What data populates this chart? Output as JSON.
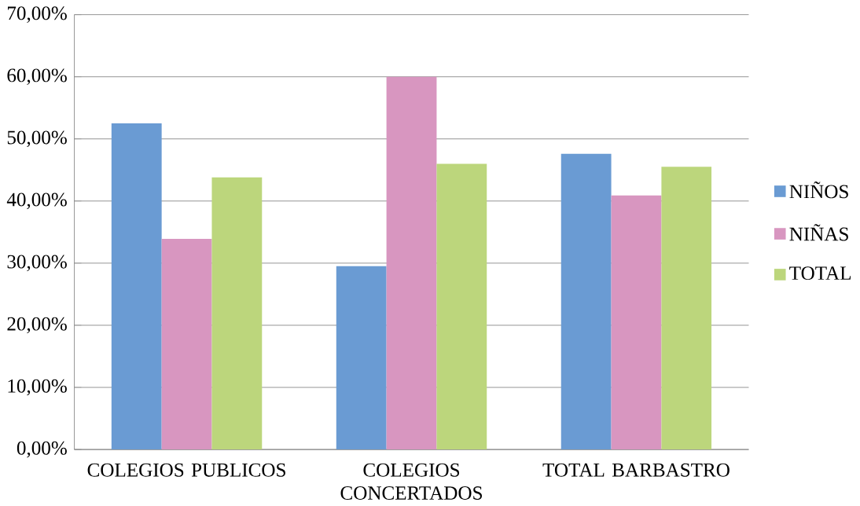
{
  "chart_data": {
    "type": "bar",
    "categories": [
      "COLEGIOS PUBLICOS",
      "COLEGIOS CONCERTADOS",
      "TOTAL BARBASTRO"
    ],
    "series": [
      {
        "name": "NIÑOS",
        "color": "#6a9bd3",
        "values": [
          52.5,
          29.5,
          47.6
        ]
      },
      {
        "name": "NIÑAS",
        "color": "#d896c0",
        "values": [
          33.9,
          60.0,
          40.9
        ]
      },
      {
        "name": "TOTAL",
        "color": "#bcd67c",
        "values": [
          43.8,
          46.0,
          45.5
        ]
      }
    ],
    "ylim": [
      0,
      70
    ],
    "yticks": [
      {
        "value": 0,
        "label": "0,00%"
      },
      {
        "value": 10,
        "label": "10,00%"
      },
      {
        "value": 20,
        "label": "20,00%"
      },
      {
        "value": 30,
        "label": "30,00%"
      },
      {
        "value": 40,
        "label": "40,00%"
      },
      {
        "value": 50,
        "label": "50,00%"
      },
      {
        "value": 60,
        "label": "60,00%"
      },
      {
        "value": 70,
        "label": "70,00%"
      }
    ],
    "grid": "y",
    "legend": "right"
  }
}
